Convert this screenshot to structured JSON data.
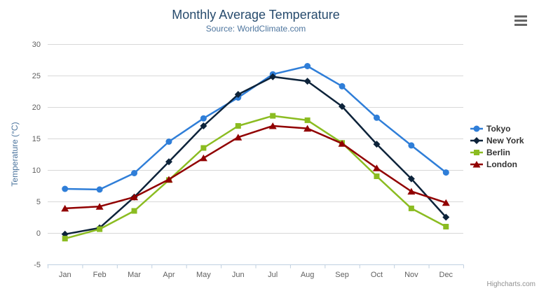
{
  "chart_data": {
    "type": "line",
    "title": "Monthly Average Temperature",
    "subtitle": "Source: WorldClimate.com",
    "xlabel": "",
    "ylabel": "Temperature (°C)",
    "ylim": [
      -5,
      30
    ],
    "y_ticks": [
      -5,
      0,
      5,
      10,
      15,
      20,
      25,
      30
    ],
    "grid": true,
    "legend_position": "right",
    "categories": [
      "Jan",
      "Feb",
      "Mar",
      "Apr",
      "May",
      "Jun",
      "Jul",
      "Aug",
      "Sep",
      "Oct",
      "Nov",
      "Dec"
    ],
    "series": [
      {
        "name": "Tokyo",
        "color": "#2f7ed8",
        "marker": "circle",
        "values": [
          7.0,
          6.9,
          9.5,
          14.5,
          18.2,
          21.5,
          25.2,
          26.5,
          23.3,
          18.3,
          13.9,
          9.6
        ]
      },
      {
        "name": "New York",
        "color": "#0d233a",
        "marker": "diamond",
        "values": [
          -0.2,
          0.8,
          5.7,
          11.3,
          17.0,
          22.0,
          24.8,
          24.1,
          20.1,
          14.1,
          8.6,
          2.5
        ]
      },
      {
        "name": "Berlin",
        "color": "#8bbc21",
        "marker": "square",
        "values": [
          -0.9,
          0.6,
          3.5,
          8.4,
          13.5,
          17.0,
          18.6,
          17.9,
          14.3,
          9.0,
          3.9,
          1.0
        ]
      },
      {
        "name": "London",
        "color": "#910000",
        "marker": "triangle",
        "values": [
          3.9,
          4.2,
          5.7,
          8.5,
          11.9,
          15.2,
          17.0,
          16.6,
          14.2,
          10.3,
          6.6,
          4.8
        ]
      }
    ]
  },
  "credits_label": "Highcharts.com",
  "icons": {
    "context_menu": "hamburger-icon"
  },
  "colors": {
    "title": "#274b6d",
    "subtitle": "#4d759e",
    "axis_title": "#4d759e",
    "axis_label": "#606060",
    "grid": "#d8d8d8",
    "axis_line": "#c0d0e0",
    "legend_text": "#333333",
    "credits": "#909090",
    "menu_icon": "#666666"
  }
}
